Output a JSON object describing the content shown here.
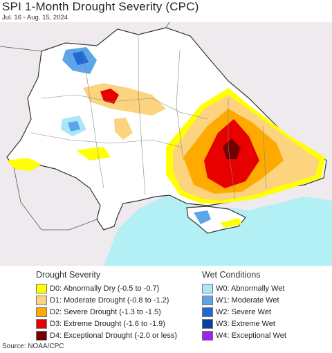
{
  "header": {
    "title": "SPI 1-Month Drought Severity (CPC)",
    "subtitle": "Jul. 16 - Aug. 15, 2024"
  },
  "legend": {
    "drought": {
      "heading": "Drought Severity",
      "items": [
        {
          "label": "D0: Abnormally Dry (-0.5 to -0.7)",
          "color": "#ffff00"
        },
        {
          "label": "D1: Moderate Drought (-0.8 to -1.2)",
          "color": "#fcd37f"
        },
        {
          "label": "D2: Severe Drought (-1.3 to -1.5)",
          "color": "#ffaa00"
        },
        {
          "label": "D3: Extreme Drought (-1.6 to -1.9)",
          "color": "#e60000"
        },
        {
          "label": "D4: Exceptional Drought (-2.0 or less)",
          "color": "#730000"
        }
      ]
    },
    "wet": {
      "heading": "Wet Conditions",
      "items": [
        {
          "label": "W0: Abnormally Wet",
          "color": "#aae6f8"
        },
        {
          "label": "W1: Moderate Wet",
          "color": "#5ca5e8"
        },
        {
          "label": "W2: Severe Wet",
          "color": "#2268d2"
        },
        {
          "label": "W3: Extreme Wet",
          "color": "#0a3fa0"
        },
        {
          "label": "W4: Exceptional Wet",
          "color": "#a020f0"
        }
      ]
    }
  },
  "map": {
    "sea_color": "#b3f0f5",
    "neighbor_color": "#eeeaee",
    "land_color": "#ffffff",
    "border_color": "#333333",
    "admin_border_color": "#888888"
  },
  "footer": {
    "source": "Source: NOAA/CPC"
  }
}
